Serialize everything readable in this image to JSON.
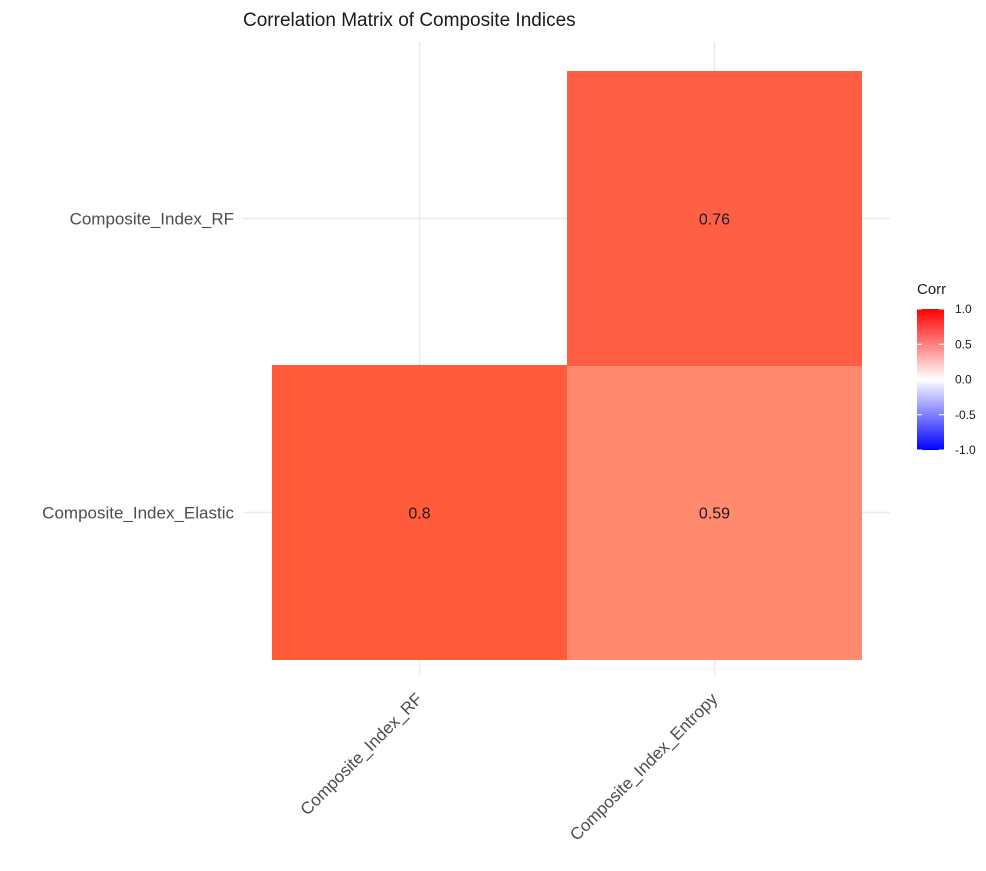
{
  "chart_data": {
    "type": "heatmap",
    "title": "Correlation Matrix of Composite Indices",
    "x_categories": [
      "Composite_Index_RF",
      "Composite_Index_Entropy"
    ],
    "y_categories": [
      "Composite_Index_Elastic",
      "Composite_Index_RF"
    ],
    "cells": [
      {
        "x": "Composite_Index_RF",
        "y": "Composite_Index_Elastic",
        "value": 0.8,
        "label": "0.8"
      },
      {
        "x": "Composite_Index_Entropy",
        "y": "Composite_Index_Elastic",
        "value": 0.59,
        "label": "0.59"
      },
      {
        "x": "Composite_Index_Entropy",
        "y": "Composite_Index_RF",
        "value": 0.76,
        "label": "0.76"
      }
    ],
    "legend": {
      "title": "Corr",
      "limits": [
        -1,
        1
      ],
      "breaks": [
        1.0,
        0.5,
        0.0,
        -0.5,
        -1.0
      ],
      "break_labels": [
        "1.0",
        "0.5",
        "0.0",
        "-0.5",
        "-1.0"
      ],
      "low_color": "#0000ff",
      "mid_color": "#ffffff",
      "high_color": "#ff0000"
    },
    "grid": true,
    "legend_position": "right"
  }
}
